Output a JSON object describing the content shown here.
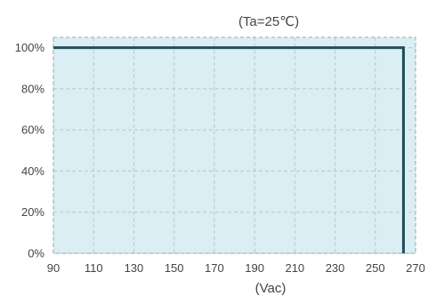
{
  "chart_data": {
    "type": "line",
    "title": "(Ta=25℃)",
    "xlabel": "(Vac)",
    "ylabel": "",
    "x_ticks": [
      "90",
      "110",
      "130",
      "150",
      "170",
      "190",
      "210",
      "230",
      "250",
      "270"
    ],
    "y_ticks": [
      "0%",
      "20%",
      "40%",
      "60%",
      "80%",
      "100%"
    ],
    "xlim": [
      90,
      270
    ],
    "ylim": [
      0,
      105
    ],
    "grid": true,
    "series": [
      {
        "x": [
          90,
          264,
          264
        ],
        "y": [
          100,
          100,
          0
        ]
      }
    ],
    "colors": {
      "plot_background": "#daeef3",
      "line": "#1f4e58",
      "grid": "#b8c8cc",
      "frame": "#9aa8ab"
    }
  }
}
